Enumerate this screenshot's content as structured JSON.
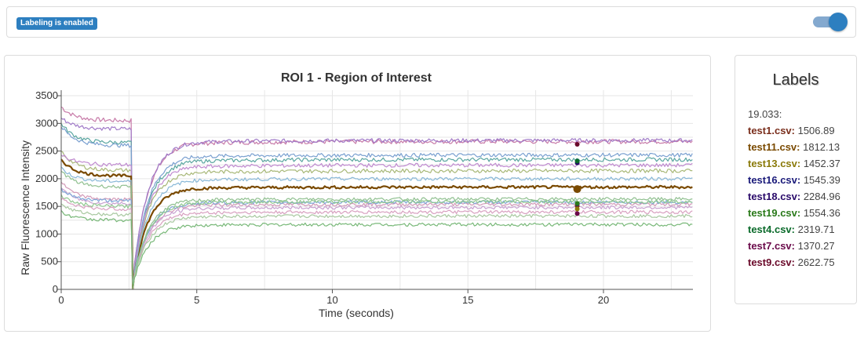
{
  "header": {
    "badge": "Labeling is enabled",
    "toggle_on": true,
    "accent_color": "#2d7fc0"
  },
  "labels_panel": {
    "title": "Labels",
    "time": "19.033:",
    "items": [
      {
        "name": "test1.csv",
        "value": "1506.89",
        "color": "#7a2e1c"
      },
      {
        "name": "test11.csv",
        "value": "1812.13",
        "color": "#7a4a00"
      },
      {
        "name": "test13.csv",
        "value": "1452.37",
        "color": "#8a7a0a"
      },
      {
        "name": "test16.csv",
        "value": "1545.39",
        "color": "#1a1a7a"
      },
      {
        "name": "test18.csv",
        "value": "2284.96",
        "color": "#2a0a6a"
      },
      {
        "name": "test19.csv",
        "value": "1554.36",
        "color": "#2a7a1a"
      },
      {
        "name": "test4.csv",
        "value": "2319.71",
        "color": "#0a6a2a"
      },
      {
        "name": "test7.csv",
        "value": "1370.27",
        "color": "#6a0a4a"
      },
      {
        "name": "test9.csv",
        "value": "2622.75",
        "color": "#6a0a2a"
      }
    ]
  },
  "chart_data": {
    "type": "line",
    "title": "ROI 1 - Region of Interest",
    "xlabel": "Time (seconds)",
    "ylabel": "Raw Fluorescence Intensity",
    "xlim": [
      0,
      23.3
    ],
    "ylim": [
      0,
      3600
    ],
    "xticks": [
      0,
      5,
      10,
      15,
      20
    ],
    "yticks": [
      0,
      500,
      1000,
      1500,
      2000,
      2500,
      3000,
      3500
    ],
    "grid": true,
    "drop_time": 2.6,
    "cursor_time": 19.033,
    "series": [
      {
        "color": "#c77aa8",
        "start": 3300,
        "pre_end": 3050,
        "post": 2620,
        "noise": 40
      },
      {
        "color": "#a07ac8",
        "start": 3100,
        "pre_end": 2900,
        "post": 2640,
        "noise": 35
      },
      {
        "color": "#5aa6a0",
        "start": 3000,
        "pre_end": 2650,
        "post": 2300,
        "noise": 35
      },
      {
        "color": "#7aa0d0",
        "start": 2950,
        "pre_end": 2600,
        "post": 2380,
        "noise": 35
      },
      {
        "color": "#a8b878",
        "start": 2500,
        "pre_end": 2150,
        "post": 2100,
        "noise": 35
      },
      {
        "color": "#c08ad0",
        "start": 2450,
        "pre_end": 2250,
        "post": 2200,
        "noise": 35
      },
      {
        "color": "#7a4a00",
        "start": 2350,
        "pre_end": 2050,
        "post": 1812,
        "noise": 25,
        "bold": true
      },
      {
        "color": "#88b8d8",
        "start": 2200,
        "pre_end": 1950,
        "post": 1960,
        "noise": 30
      },
      {
        "color": "#90c090",
        "start": 2150,
        "pre_end": 1850,
        "post": 1600,
        "noise": 30
      },
      {
        "color": "#d29ab8",
        "start": 1950,
        "pre_end": 1620,
        "post": 1507,
        "noise": 30
      },
      {
        "color": "#c8a0d0",
        "start": 1850,
        "pre_end": 1550,
        "post": 1452,
        "noise": 30
      },
      {
        "color": "#80a8d8",
        "start": 1800,
        "pre_end": 1600,
        "post": 1545,
        "noise": 30
      },
      {
        "color": "#90c890",
        "start": 1700,
        "pre_end": 1500,
        "post": 1554,
        "noise": 30
      },
      {
        "color": "#d8a0c0",
        "start": 1650,
        "pre_end": 1450,
        "post": 1370,
        "noise": 30
      },
      {
        "color": "#a8c8a0",
        "start": 1550,
        "pre_end": 1350,
        "post": 1300,
        "noise": 30
      },
      {
        "color": "#78b878",
        "start": 1400,
        "pre_end": 1250,
        "post": 1150,
        "noise": 30
      }
    ]
  }
}
